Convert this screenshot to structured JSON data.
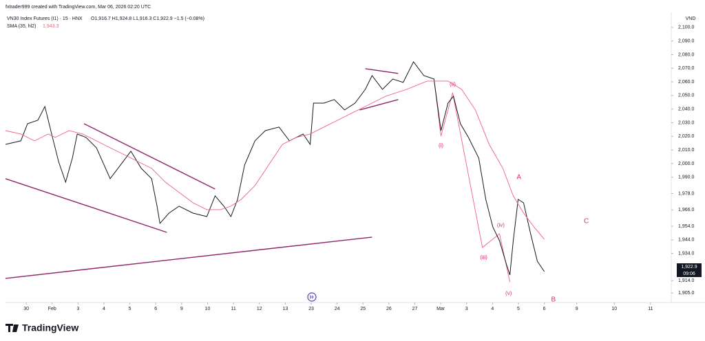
{
  "chart_data": {
    "type": "line",
    "credit": "fxtrader999 created with TradingView.com, Mar 06, 2026 02:20 UTC",
    "ohlc_text": "O1,916.7 H1,924.8 L1,916.3 C1,922.9 −1.5 (−0.08%)",
    "sma_value_label": "1,943.3",
    "currency": "VND",
    "last_price_label": "1,922.9",
    "countdown": "09:06",
    "brand": "TradingView",
    "xlim": [
      -0.8,
      24.9
    ],
    "ylim": [
      1898,
      2109
    ],
    "grid": false,
    "xticks": [
      {
        "value": 0,
        "label": "30"
      },
      {
        "value": 1,
        "label": "Feb"
      },
      {
        "value": 2,
        "label": "3"
      },
      {
        "value": 3,
        "label": "4"
      },
      {
        "value": 4,
        "label": "5"
      },
      {
        "value": 5,
        "label": "6"
      },
      {
        "value": 6,
        "label": "9"
      },
      {
        "value": 7,
        "label": "10"
      },
      {
        "value": 8,
        "label": "11"
      },
      {
        "value": 9,
        "label": "12"
      },
      {
        "value": 10,
        "label": "13"
      },
      {
        "value": 11,
        "label": "23"
      },
      {
        "value": 12,
        "label": "24"
      },
      {
        "value": 13,
        "label": "25"
      },
      {
        "value": 14,
        "label": "26"
      },
      {
        "value": 15,
        "label": "27"
      },
      {
        "value": 16,
        "label": "Mar"
      },
      {
        "value": 17,
        "label": "3"
      },
      {
        "value": 18,
        "label": "4"
      },
      {
        "value": 19,
        "label": "5"
      },
      {
        "value": 20,
        "label": "6"
      },
      {
        "value": 21.25,
        "label": "9"
      },
      {
        "value": 22.7,
        "label": "10"
      },
      {
        "value": 24.1,
        "label": "11"
      }
    ],
    "yticks": [
      {
        "value": 2100,
        "label": "2,100.0"
      },
      {
        "value": 2090,
        "label": "2,090.0"
      },
      {
        "value": 2080,
        "label": "2,080.0"
      },
      {
        "value": 2070,
        "label": "2,070.0"
      },
      {
        "value": 2060,
        "label": "2,060.0"
      },
      {
        "value": 2050,
        "label": "2,050.0"
      },
      {
        "value": 2040,
        "label": "2,040.0"
      },
      {
        "value": 2030,
        "label": "2,030.0"
      },
      {
        "value": 2020,
        "label": "2,020.0"
      },
      {
        "value": 2010,
        "label": "2,010.0"
      },
      {
        "value": 2000,
        "label": "2,000.0"
      },
      {
        "value": 1990,
        "label": "1,990.0"
      },
      {
        "value": 1978,
        "label": "1,978.0"
      },
      {
        "value": 1966,
        "label": "1,966.0"
      },
      {
        "value": 1954,
        "label": "1,954.0"
      },
      {
        "value": 1944,
        "label": "1,944.0"
      },
      {
        "value": 1934,
        "label": "1,934.0"
      },
      {
        "value": 1914,
        "label": "1,914.0"
      },
      {
        "value": 1905,
        "label": "1,905.0"
      }
    ],
    "series": [
      {
        "name": "VN30 Index Futures (I1) · 15 · HNX",
        "color": "#131722",
        "x": [
          -0.8,
          -0.21,
          0.05,
          0.45,
          0.72,
          0.98,
          1.25,
          1.52,
          1.78,
          1.97,
          2.31,
          2.71,
          3.24,
          3.64,
          4.04,
          4.44,
          4.84,
          5.05,
          5.16,
          5.51,
          5.9,
          6.44,
          6.97,
          7.29,
          7.63,
          7.9,
          8.16,
          8.43,
          8.83,
          9.23,
          9.76,
          10.16,
          10.69,
          10.96,
          11.09,
          11.49,
          11.89,
          12.29,
          12.69,
          13.09,
          13.35,
          13.75,
          14.15,
          14.55,
          14.95,
          15.35,
          15.74,
          16.01,
          16.28,
          16.49,
          16.76,
          17.07,
          17.47,
          17.74,
          18.01,
          18.27,
          18.54,
          18.67,
          18.8,
          18.99,
          19.2,
          19.47,
          19.73,
          20.0
        ],
        "values": [
          2014.1,
          2016.7,
          2029.3,
          2031.8,
          2041.9,
          2021.7,
          2001.5,
          1986.4,
          2004.0,
          2021.7,
          2019.2,
          2011.6,
          1988.9,
          1999.0,
          2009.1,
          1996.5,
          1988.9,
          1968.7,
          1956.1,
          1963.6,
          1968.7,
          1963.6,
          1961.1,
          1976.3,
          1968.7,
          1961.1,
          1973.7,
          1999.0,
          2016.7,
          2024.2,
          2026.8,
          2016.7,
          2021.7,
          2014.1,
          2044.4,
          2044.4,
          2047.0,
          2039.4,
          2044.4,
          2054.5,
          2064.6,
          2054.5,
          2062.1,
          2059.6,
          2074.7,
          2064.6,
          2062.1,
          2024.2,
          2044.4,
          2049.5,
          2029.3,
          2019.2,
          2004.0,
          1973.7,
          1953.5,
          1943.4,
          1925.8,
          1918.2,
          1943.4,
          1973.7,
          1971.2,
          1948.5,
          1928.3,
          1920.7
        ]
      },
      {
        "name": "SMA (35, hl2)",
        "color": "#f0607e",
        "x": [
          -0.8,
          -0.21,
          0.32,
          0.85,
          1.12,
          1.65,
          2.18,
          2.71,
          3.24,
          3.78,
          4.31,
          4.84,
          5.37,
          5.9,
          6.44,
          6.97,
          7.5,
          7.9,
          8.3,
          8.83,
          9.36,
          9.89,
          10.43,
          10.96,
          11.49,
          12.02,
          12.55,
          13.09,
          13.88,
          14.68,
          15.48,
          16.28,
          16.81,
          17.34,
          17.87,
          18.4,
          18.8,
          19.2,
          19.6,
          20.0
        ],
        "values": [
          2024.2,
          2021.7,
          2016.7,
          2021.7,
          2019.2,
          2024.2,
          2021.7,
          2016.7,
          2011.6,
          2006.6,
          2001.5,
          1996.5,
          1986.4,
          1978.8,
          1971.2,
          1966.2,
          1966.2,
          1968.7,
          1973.7,
          1983.8,
          1999.0,
          2014.1,
          2019.2,
          2021.7,
          2026.8,
          2031.8,
          2036.9,
          2041.9,
          2049.5,
          2054.5,
          2060.6,
          2060.6,
          2054.5,
          2039.4,
          2014.1,
          1996.5,
          1976.3,
          1963.6,
          1953.5,
          1944.4
        ]
      }
    ],
    "drawings": [
      {
        "color": "#8e2466",
        "x": [
          2.23,
          7.29
        ],
        "y": [
          2029.3,
          1981.3
        ]
      },
      {
        "color": "#8e2466",
        "x": [
          -0.8,
          5.43
        ],
        "y": [
          1988.9,
          1949.5
        ]
      },
      {
        "color": "#8e2466",
        "x": [
          -0.8,
          13.35
        ],
        "y": [
          1915.7,
          1946.0
        ]
      },
      {
        "color": "#8e2466",
        "x": [
          13.09,
          14.36
        ],
        "y": [
          2069.7,
          2066.2
        ]
      },
      {
        "color": "#8e2466",
        "x": [
          12.87,
          14.36
        ],
        "y": [
          2039.4,
          2047.0
        ]
      },
      {
        "color": "#f0607e",
        "x": [
          15.74,
          16.01,
          16.46,
          17.61,
          18.27,
          18.67
        ],
        "y": [
          2062.1,
          2020.2,
          2052.0,
          1938.4,
          1948.5,
          1913.1
        ]
      }
    ],
    "wave_labels": [
      {
        "text": "(i)",
        "x": 16.01,
        "y": 2013.1
      },
      {
        "text": "(ii)",
        "x": 16.46,
        "y": 2058.1
      },
      {
        "text": "(iii)",
        "x": 17.66,
        "y": 1930.8
      },
      {
        "text": "(iv)",
        "x": 18.32,
        "y": 1954.5
      },
      {
        "text": "(v)",
        "x": 18.62,
        "y": 1904.5
      },
      {
        "text": "A",
        "x": 19.02,
        "y": 1989.9
      },
      {
        "text": "B",
        "x": 20.35,
        "y": 1900.0
      },
      {
        "text": "C",
        "x": 21.62,
        "y": 1957.6
      }
    ]
  }
}
